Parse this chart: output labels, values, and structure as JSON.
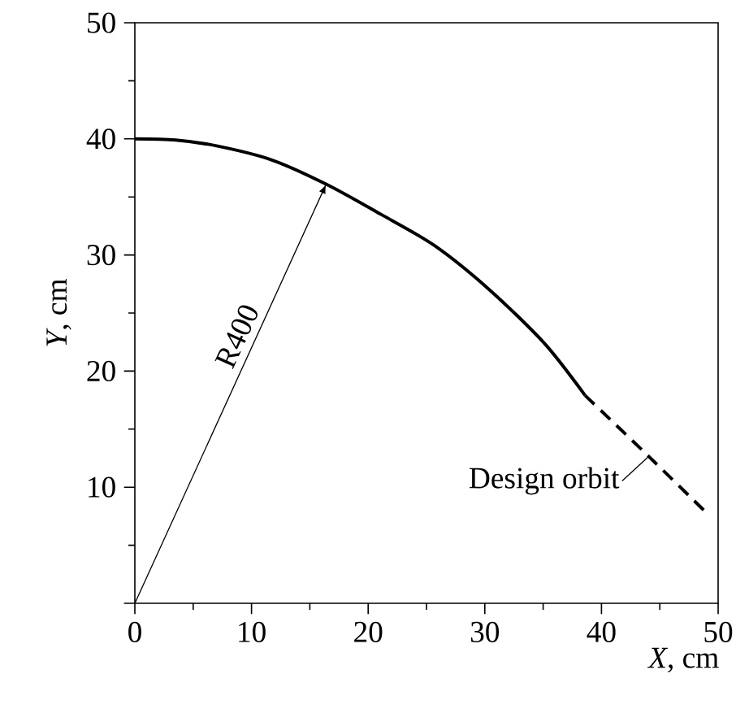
{
  "chart_data": {
    "type": "line",
    "xlabel": "*X*, cm",
    "ylabel": "*Y*, cm",
    "xlim": [
      0,
      50
    ],
    "ylim": [
      0,
      50
    ],
    "xticks": [
      0,
      10,
      20,
      30,
      40,
      50
    ],
    "yticks": [
      {
        "value": 0,
        "label": null
      },
      10,
      20,
      30,
      40,
      50
    ],
    "grid": false,
    "marker": "none",
    "series": [
      {
        "color": "#000000",
        "line_style": "solid",
        "x": [
          0,
          3.5,
          7,
          11.7,
          16.4,
          21.1,
          25.7,
          30.4,
          35.1,
          38.6
        ],
        "values": [
          40,
          39.9,
          39.4,
          38.2,
          36.1,
          33.5,
          30.8,
          27.0,
          22.4,
          17.9
        ]
      },
      {
        "color": "#000000",
        "line_style": "dashed",
        "x": [
          38.6,
          44,
          49.2
        ],
        "values": [
          17.9,
          12.7,
          7.6
        ]
      }
    ],
    "annotations": [
      "R400",
      {
        "text": "Design orbit",
        "x": 44,
        "y": 12.6
      }
    ]
  }
}
